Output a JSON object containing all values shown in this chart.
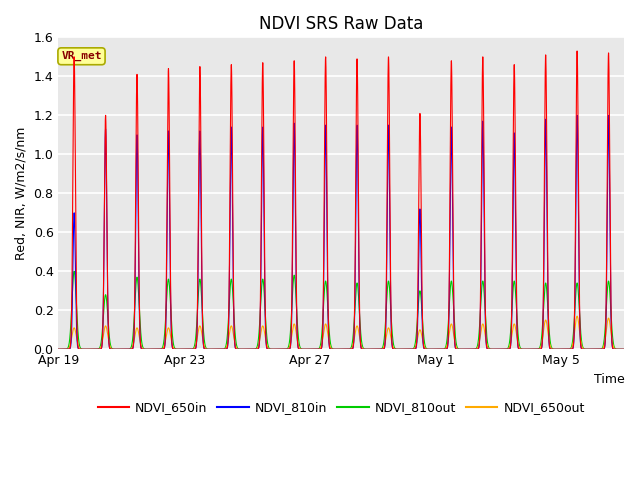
{
  "title": "NDVI SRS Raw Data",
  "xlabel": "Time",
  "ylabel": "Red, NIR, W/m2/s/nm",
  "ylim": [
    0.0,
    1.6
  ],
  "yticks": [
    0.0,
    0.2,
    0.4,
    0.6,
    0.8,
    1.0,
    1.2,
    1.4,
    1.6
  ],
  "annotation": "VR_met",
  "series": {
    "NDVI_650in": {
      "color": "#ff0000",
      "label": "NDVI_650in"
    },
    "NDVI_810in": {
      "color": "#0000ff",
      "label": "NDVI_810in"
    },
    "NDVI_810out": {
      "color": "#00cc00",
      "label": "NDVI_810out"
    },
    "NDVI_650out": {
      "color": "#ffaa00",
      "label": "NDVI_650out"
    }
  },
  "background_color": "#e8e8e8",
  "fig_background": "#ffffff",
  "title_fontsize": 12,
  "axis_fontsize": 9,
  "legend_fontsize": 9,
  "n_days": 18,
  "xtick_labels": [
    "Apr 19",
    "Apr 23",
    "Apr 27",
    "May 1",
    "May 5"
  ],
  "xtick_days": [
    0,
    4,
    8,
    12,
    16
  ],
  "peaks_650in": [
    1.5,
    1.2,
    1.41,
    1.44,
    1.45,
    1.46,
    1.47,
    1.48,
    1.5,
    1.49,
    1.5,
    1.21,
    1.48,
    1.5,
    1.46,
    1.51,
    1.53,
    1.52
  ],
  "peaks_810in": [
    0.7,
    1.13,
    1.1,
    1.12,
    1.12,
    1.14,
    1.14,
    1.16,
    1.15,
    1.15,
    1.15,
    0.72,
    1.14,
    1.17,
    1.11,
    1.18,
    1.2,
    1.2
  ],
  "peaks_810out": [
    0.4,
    0.28,
    0.37,
    0.36,
    0.36,
    0.36,
    0.36,
    0.38,
    0.35,
    0.34,
    0.35,
    0.3,
    0.35,
    0.35,
    0.35,
    0.34,
    0.34,
    0.35
  ],
  "peaks_650out": [
    0.11,
    0.12,
    0.11,
    0.11,
    0.12,
    0.12,
    0.12,
    0.13,
    0.13,
    0.12,
    0.11,
    0.1,
    0.13,
    0.13,
    0.13,
    0.15,
    0.17,
    0.16
  ]
}
